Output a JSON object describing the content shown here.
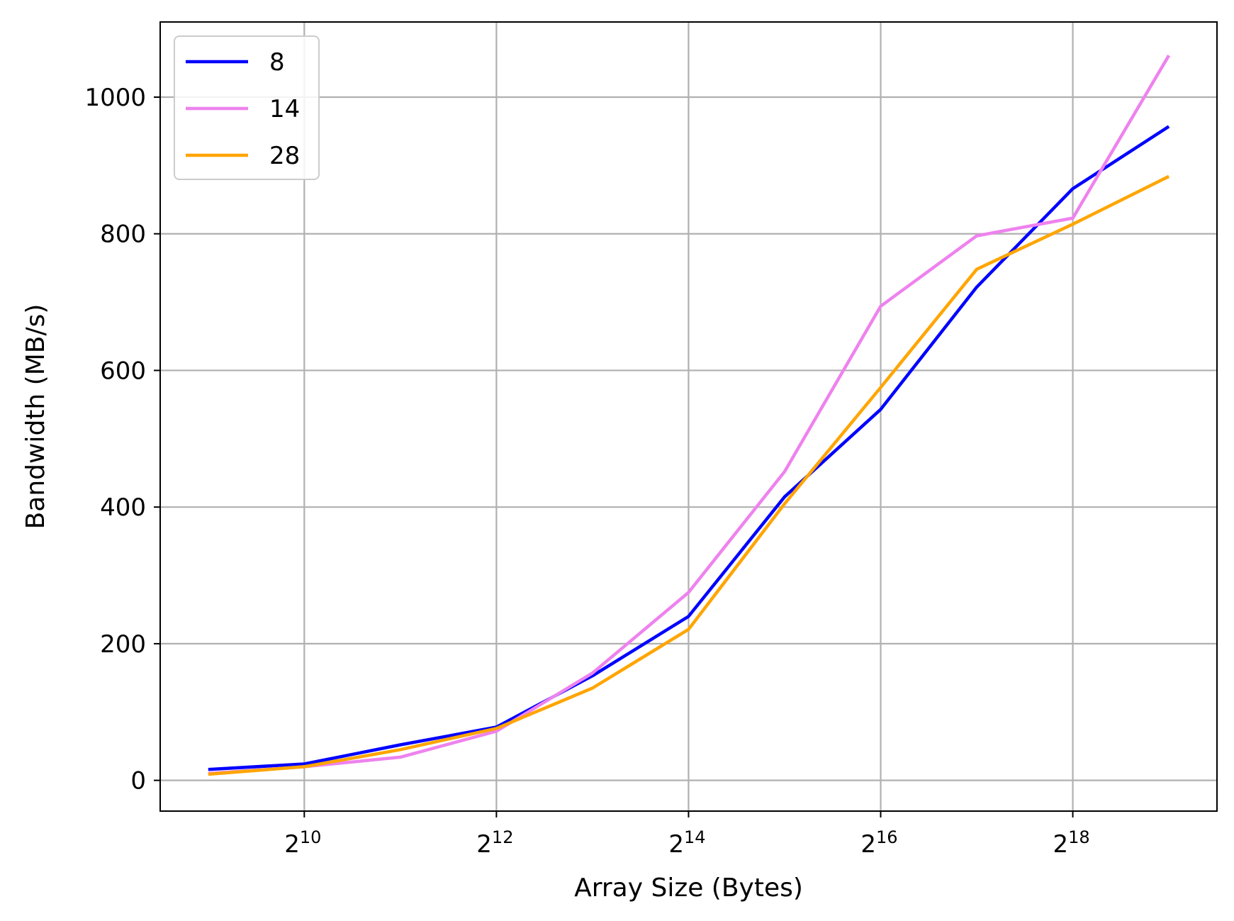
{
  "chart_data": {
    "type": "line",
    "title": "",
    "xlabel": "Array Size (Bytes)",
    "ylabel": "Bandwidth (MB/s)",
    "x_scale": "log2",
    "x": [
      512,
      1024,
      2048,
      4096,
      8192,
      16384,
      32768,
      65536,
      131072,
      262144,
      524288
    ],
    "xlim": [
      362,
      742000
    ],
    "ylim": [
      -45,
      1110
    ],
    "x_ticks": [
      {
        "value": 1024,
        "base": "2",
        "exponent": "10"
      },
      {
        "value": 4096,
        "base": "2",
        "exponent": "12"
      },
      {
        "value": 16384,
        "base": "2",
        "exponent": "14"
      },
      {
        "value": 65536,
        "base": "2",
        "exponent": "16"
      },
      {
        "value": 262144,
        "base": "2",
        "exponent": "18"
      }
    ],
    "y_ticks": [
      {
        "value": 0,
        "label": "0"
      },
      {
        "value": 200,
        "label": "200"
      },
      {
        "value": 400,
        "label": "400"
      },
      {
        "value": 600,
        "label": "600"
      },
      {
        "value": 800,
        "label": "800"
      },
      {
        "value": 1000,
        "label": "1000"
      }
    ],
    "grid": true,
    "legend_position": "top-left",
    "series": [
      {
        "name": "8",
        "color": "#0000ff",
        "values": [
          16,
          24,
          52,
          78,
          153,
          240,
          415,
          543,
          722,
          866,
          957
        ]
      },
      {
        "name": "14",
        "color": "#ee82ee",
        "values": [
          10,
          20,
          34,
          72,
          157,
          275,
          452,
          694,
          797,
          823,
          1061
        ]
      },
      {
        "name": "28",
        "color": "#ffa500",
        "values": [
          9,
          20,
          45,
          76,
          135,
          221,
          405,
          575,
          748,
          814,
          884
        ]
      }
    ]
  }
}
